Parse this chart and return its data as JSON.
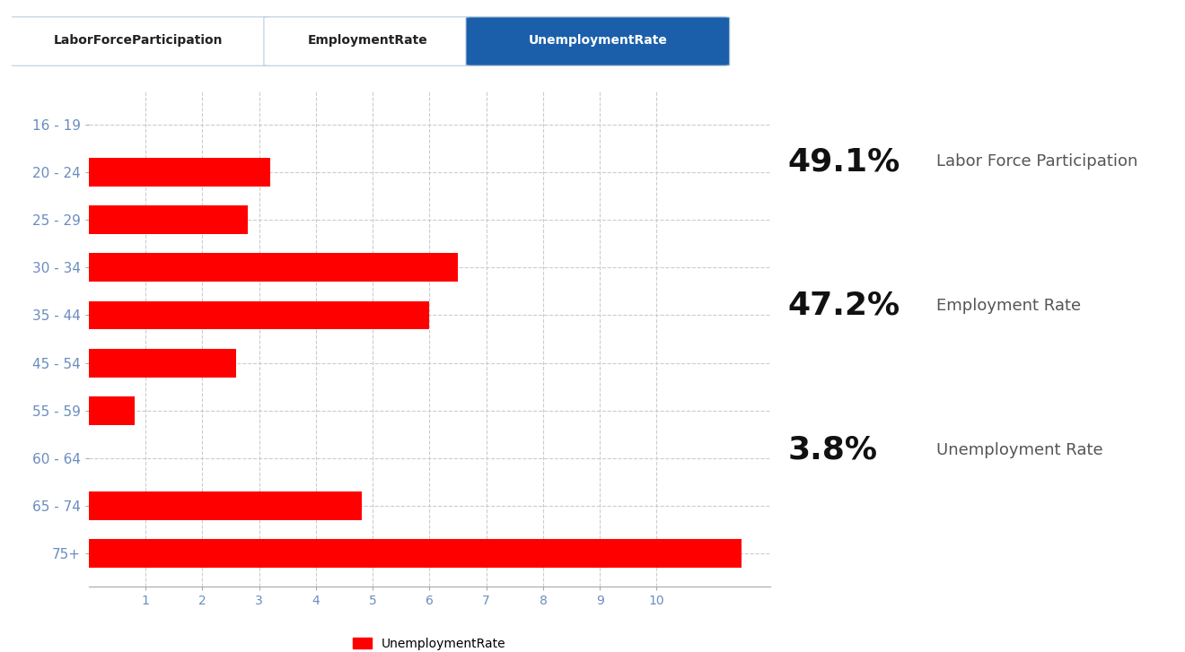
{
  "categories": [
    "16 - 19",
    "20 - 24",
    "25 - 29",
    "30 - 34",
    "35 - 44",
    "45 - 54",
    "55 - 59",
    "60 - 64",
    "65 - 74",
    "75+"
  ],
  "values": [
    0.0,
    3.2,
    2.8,
    6.5,
    6.0,
    2.6,
    0.8,
    0.0,
    4.8,
    11.5
  ],
  "bar_color": "#FF0000",
  "xlim": [
    0,
    12
  ],
  "xticks": [
    1,
    2,
    3,
    4,
    5,
    6,
    7,
    8,
    9,
    10
  ],
  "legend_label": "UnemploymentRate",
  "tab_labels": [
    "LaborForceParticipation",
    "EmploymentRate",
    "UnemploymentRate"
  ],
  "tab_active": 2,
  "stat_labels": [
    "Labor Force Participation",
    "Employment Rate",
    "Unemployment Rate"
  ],
  "stat_values": [
    "49.1%",
    "47.2%",
    "3.8%"
  ],
  "background_color": "#FFFFFF",
  "grid_color": "#CCCCCC",
  "tab_active_color": "#1B5FAB",
  "tab_active_text": "#FFFFFF",
  "tab_inactive_text": "#222222",
  "axis_text_color": "#6B8CBF",
  "stat_value_fontsize": 26,
  "stat_label_fontsize": 13
}
